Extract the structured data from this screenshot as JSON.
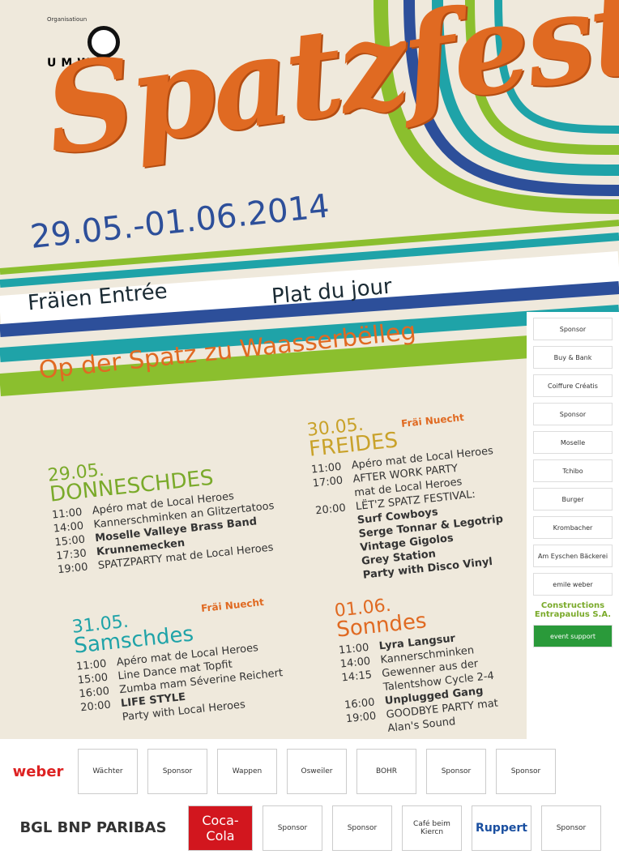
{
  "header": {
    "organizer_label": "Organisatioun",
    "organizer_logo": "UMW",
    "title": "Spatzfest",
    "dates": "29.05.-01.06.2014",
    "entry": "Fräien Entrée",
    "plat": "Plat du jour",
    "venue": "Op der Spatz zu Waasserbëlleg"
  },
  "colors": {
    "orange": "#e06a22",
    "blue": "#2d4f9a",
    "green": "#8bbf2e",
    "teal": "#1fa3a8",
    "beige": "#efe9dc"
  },
  "days": [
    {
      "date": "29.05.",
      "name": "DONNESCHDES",
      "color": "#7aaa2a",
      "free": "",
      "items": [
        {
          "time": "11:00",
          "text": "Apéro mat de Local Heroes",
          "bold": false
        },
        {
          "time": "14:00",
          "text": "Kannerschminken an Glitzertatoos",
          "bold": false
        },
        {
          "time": "15:00",
          "text": "Moselle Valleye Brass Band",
          "bold": true
        },
        {
          "time": "17:30",
          "text": "Krunnemecken",
          "bold": true
        },
        {
          "time": "19:00",
          "text": "SPATZPARTY mat de Local Heroes",
          "bold": false
        }
      ]
    },
    {
      "date": "30.05.",
      "name": "FREIDES",
      "color": "#c9a22a",
      "free": "Fräi Nuecht",
      "items": [
        {
          "time": "11:00",
          "text": "Apéro mat de Local Heroes",
          "bold": false
        },
        {
          "time": "17:00",
          "text": "AFTER WORK PARTY",
          "bold": false
        },
        {
          "time": "",
          "text": "mat de Local Heroes",
          "bold": false
        },
        {
          "time": "20:00",
          "text": "LËT'Z SPATZ FESTIVAL:",
          "bold": false
        },
        {
          "time": "",
          "text": "Surf Cowboys",
          "bold": true
        },
        {
          "time": "",
          "text": "Serge Tonnar & Legotrip",
          "bold": true
        },
        {
          "time": "",
          "text": "Vintage Gigolos",
          "bold": true
        },
        {
          "time": "",
          "text": "Grey Station",
          "bold": true
        },
        {
          "time": "",
          "text": "Party with Disco Vinyl",
          "bold": true
        }
      ]
    },
    {
      "date": "31.05.",
      "name": "Samschdes",
      "color": "#1fa3a8",
      "free": "Fräi Nuecht",
      "items": [
        {
          "time": "11:00",
          "text": "Apéro mat de Local Heroes",
          "bold": false
        },
        {
          "time": "15:00",
          "text": "Line Dance mat Topfit",
          "bold": false
        },
        {
          "time": "16:00",
          "text": "Zumba mam Séverine Reichert",
          "bold": false
        },
        {
          "time": "20:00",
          "text": "LIFE STYLE",
          "bold": true
        },
        {
          "time": "",
          "text": "Party with Local Heroes",
          "bold": false
        }
      ]
    },
    {
      "date": "01.06.",
      "name": "Sonndes",
      "color": "#e06a22",
      "free": "",
      "items": [
        {
          "time": "11:00",
          "text": "Lyra Langsur",
          "bold": true
        },
        {
          "time": "14:00",
          "text": "Kannerschminken",
          "bold": false
        },
        {
          "time": "14:15",
          "text": "Gewenner aus der",
          "bold": false
        },
        {
          "time": "",
          "text": "Talentshow Cycle 2-4",
          "bold": false
        },
        {
          "time": "16:00",
          "text": "Unplugged Gang",
          "bold": true
        },
        {
          "time": "19:00",
          "text": "GOODBYE PARTY mat",
          "bold": false
        },
        {
          "time": "",
          "text": "Alan's Sound",
          "bold": false
        }
      ]
    }
  ],
  "sidebar_sponsors": [
    "Sponsor",
    "Buy & Bank",
    "Coiffure Créatis",
    "Sponsor",
    "Moselle",
    "Tchibo",
    "Burger",
    "Krombacher",
    "Am Eyschen Bäckerei",
    "emile weber",
    "Constructions Entrapaulus S.A.",
    "event support"
  ],
  "footer_sponsors": [
    "weber",
    "Wächter",
    "Sponsor",
    "Wappen",
    "Osweiler",
    "BOHR",
    "Sponsor",
    "Sponsor",
    "BGL BNP PARIBAS",
    "Coca-Cola",
    "Sponsor",
    "Sponsor",
    "Café beim Kiercn",
    "Ruppert",
    "Sponsor"
  ]
}
